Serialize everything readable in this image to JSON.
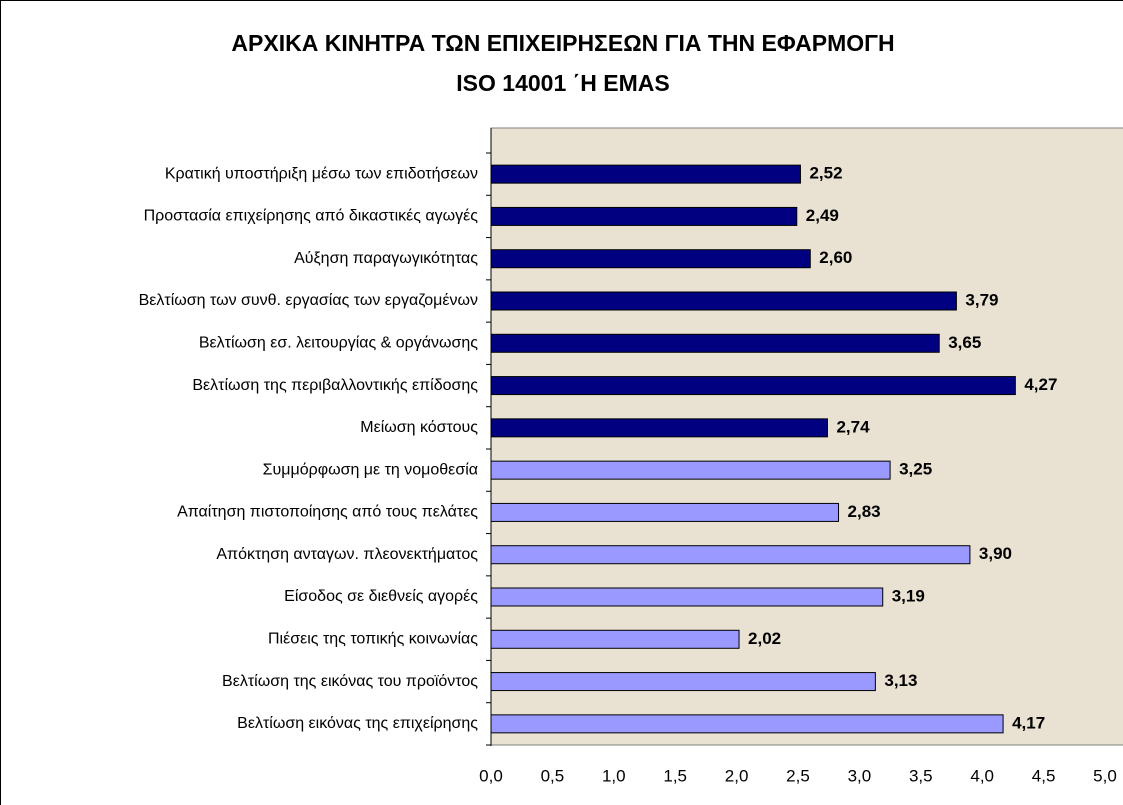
{
  "chart_data": {
    "type": "barh",
    "title": [
      "ΑΡΧΙΚΑ ΚΙΝΗΤΡΑ ΤΩΝ ΕΠΙΧΕΙΡΗΣΕΩΝ ΓΙΑ ΤΗΝ ΕΦΑΡΜΟΓΗ",
      "ISO 14001 ΄Η EMAS"
    ],
    "categories": [
      "Κρατική υποστήριξη μέσω των επιδοτήσεων",
      "Προστασία επιχείρησης από δικαστικές αγωγές",
      "Αύξηση παραγωγικότητας",
      "Βελτίωση των συνθ. εργασίας των εργαζομένων",
      "Βελτίωση εσ. λειτουργίας & οργάνωσης",
      "Βελτίωση της περιβαλλοντικής επίδοσης",
      "Μείωση κόστους",
      "Συμμόρφωση με τη νομοθεσία",
      "Απαίτηση πιστοποίησης από τους πελάτες",
      "Απόκτηση ανταγων. πλεονεκτήματος",
      "Είσοδος σε διεθνείς αγορές",
      "Πιέσεις της τοπικής κοινωνίας",
      "Βελτίωση της εικόνας του προϊόντος",
      "Βελτίωση εικόνας της επιχείρησης"
    ],
    "values": [
      2.52,
      2.49,
      2.6,
      3.79,
      3.65,
      4.27,
      2.74,
      3.25,
      2.83,
      3.9,
      3.19,
      2.02,
      3.13,
      4.17
    ],
    "value_labels": [
      "2,52",
      "2,49",
      "2,60",
      "3,79",
      "3,65",
      "4,27",
      "2,74",
      "3,25",
      "2,83",
      "3,90",
      "3,19",
      "2,02",
      "3,13",
      "4,17"
    ],
    "colors": [
      "#000080",
      "#000080",
      "#000080",
      "#000080",
      "#000080",
      "#000080",
      "#000080",
      "#9999ff",
      "#9999ff",
      "#9999ff",
      "#9999ff",
      "#9999ff",
      "#9999ff",
      "#9999ff"
    ],
    "xlim": [
      0,
      5
    ],
    "xticks": [
      {
        "value": 0,
        "label": "0,0"
      },
      {
        "value": 0.5,
        "label": "0,5"
      },
      {
        "value": 1,
        "label": "1,0"
      },
      {
        "value": 1.5,
        "label": "1,5"
      },
      {
        "value": 2,
        "label": "2,0"
      },
      {
        "value": 2.5,
        "label": "2,5"
      },
      {
        "value": 3,
        "label": "3,0"
      },
      {
        "value": 3.5,
        "label": "3,5"
      },
      {
        "value": 4,
        "label": "4,0"
      },
      {
        "value": 4.5,
        "label": "4,5"
      },
      {
        "value": 5,
        "label": "5,0"
      }
    ]
  }
}
